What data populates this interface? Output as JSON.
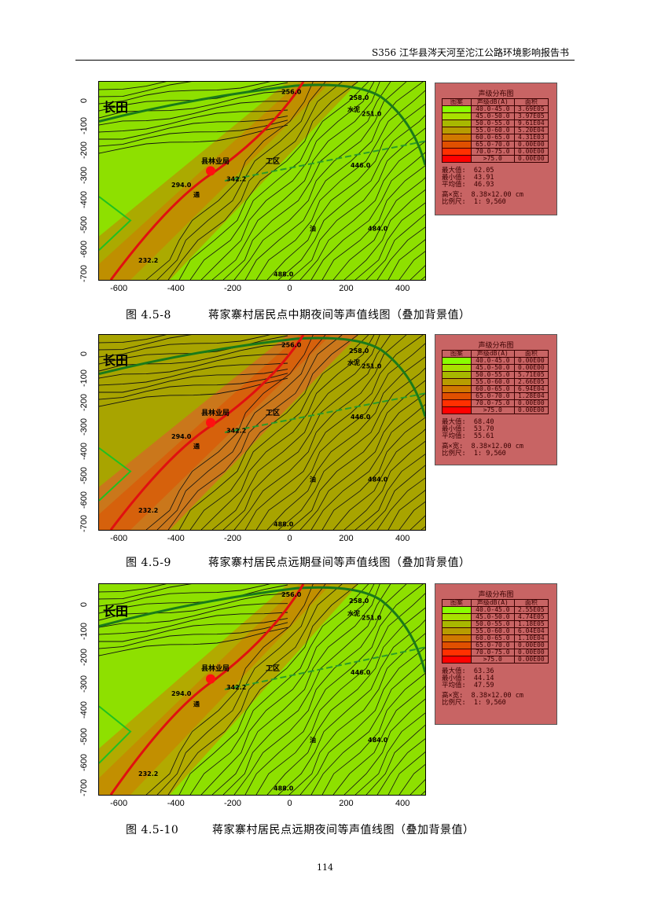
{
  "header": {
    "title": "S356 江华县涔天河至沱江公路环境影响报告书"
  },
  "page_number": "114",
  "axes": {
    "y_ticks": [
      "0",
      "-100",
      "-200",
      "-300",
      "-400",
      "-500",
      "-600",
      "-700"
    ],
    "x_ticks": [
      "-600",
      "-400",
      "-200",
      "0",
      "200",
      "400"
    ]
  },
  "map_labels": [
    "长田",
    "256.0",
    "258.0",
    "水泥",
    "251.0",
    "县林业局",
    "工区",
    "342.2",
    "446.0",
    "294.0",
    "232.2",
    "484.0",
    "488.0",
    "油",
    "通"
  ],
  "legend_common": {
    "title": "声级分布图",
    "col_swatch": "图案",
    "col_level": "声级dB(A)",
    "col_area": "面积",
    "label_max": "最大值:",
    "label_min": "最小值:",
    "label_avg": "平均值:",
    "label_size": "高×宽:",
    "label_scale": "比例尺:",
    "size": "8.38×12.00 cm",
    "scale": "1: 9,560",
    "levels": [
      "40.0-45.0",
      "45.0-50.0",
      "50.0-55.0",
      "55.0-60.0",
      "60.0-65.0",
      "65.0-70.0",
      "70.0-75.0",
      ">75.0"
    ],
    "colors": [
      "#88ff00",
      "#a8e000",
      "#a8b800",
      "#b89c00",
      "#d07800",
      "#e05000",
      "#ff3000",
      "#ff0000"
    ]
  },
  "figures": [
    {
      "number": "图 4.5-8",
      "caption": "蒋家寨村居民点中期夜间等声值线图（叠加背景值）",
      "areas": [
        "3.69E05",
        "3.97E05",
        "9.61E04",
        "5.20E04",
        "4.31E03",
        "0.00E00",
        "0.00E00",
        "0.00E00"
      ],
      "max": "62.05",
      "min": "43.91",
      "avg": "46.93",
      "base_color": "#8ee000",
      "band_color": "#b0a000"
    },
    {
      "number": "图 4.5-9",
      "caption": "蒋家寨村居民点远期昼间等声值线图（叠加背景值）",
      "areas": [
        "0.00E00",
        "0.00E00",
        "5.71E05",
        "2.66E05",
        "6.94E04",
        "1.28E04",
        "0.00E00",
        "0.00E00"
      ],
      "max": "68.40",
      "min": "53.70",
      "avg": "55.61",
      "base_color": "#a8a400",
      "band_color": "#d07020"
    },
    {
      "number": "图 4.5-10",
      "caption": "蒋家寨村居民点远期夜间等声值线图（叠加背景值）",
      "areas": [
        "2.55E05",
        "4.74E05",
        "1.18E05",
        "6.04E04",
        "1.10E04",
        "0.00E00",
        "0.00E00",
        "0.00E00"
      ],
      "max": "63.36",
      "min": "44.14",
      "avg": "47.59",
      "base_color": "#8ee000",
      "band_color": "#b8a000"
    }
  ]
}
